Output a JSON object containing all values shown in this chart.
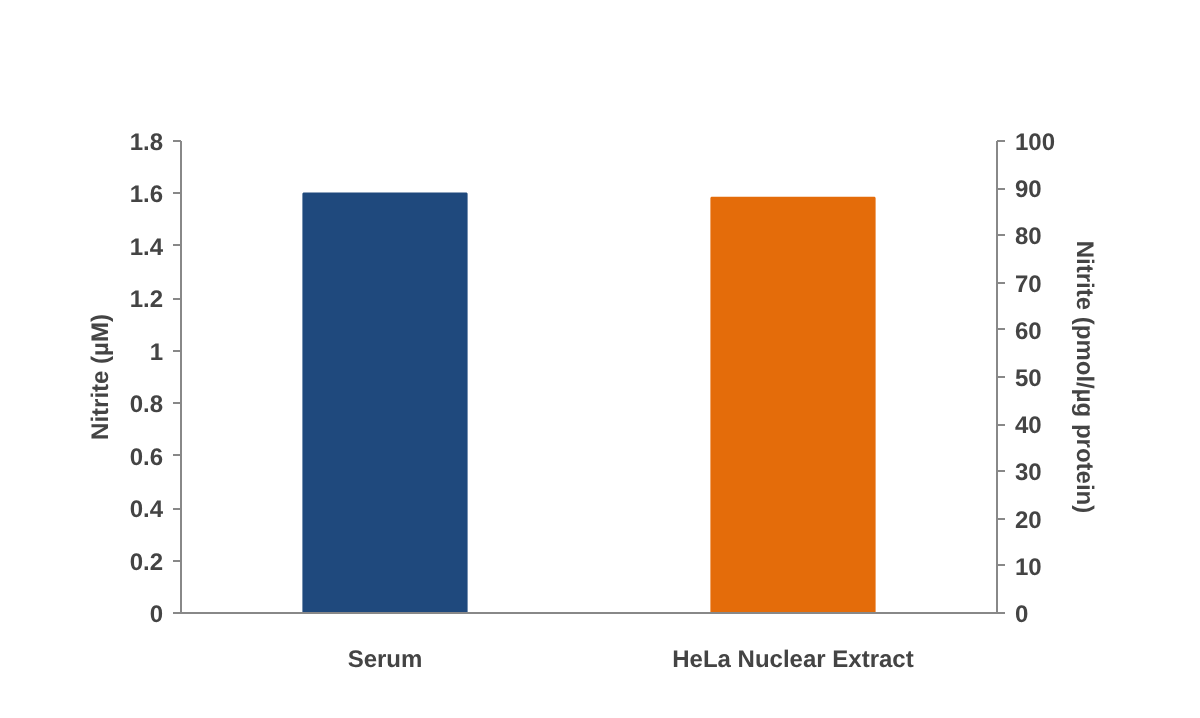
{
  "chart_data": {
    "type": "bar",
    "categories": [
      "Serum",
      "HeLa Nuclear Extract"
    ],
    "ylabel": "Nitrite (µM)",
    "y2label": "Nitrite (pmol/µg protein)",
    "ylim": [
      0,
      1.8
    ],
    "yticks": [
      0,
      0.2,
      0.4,
      0.6,
      0.8,
      1,
      1.2,
      1.4,
      1.6,
      1.8
    ],
    "y2lim": [
      0,
      100
    ],
    "y2ticks": [
      0,
      10,
      20,
      30,
      40,
      50,
      60,
      70,
      80,
      90,
      100
    ],
    "grid": false,
    "series": [
      {
        "color": "#1f497d",
        "values": [
          1.6,
          null
        ]
      },
      {
        "color": "#e46c0a",
        "values": [
          null,
          88
        ],
        "axis": "y2"
      }
    ]
  }
}
